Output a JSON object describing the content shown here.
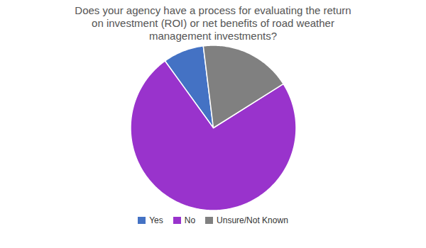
{
  "chart_data": {
    "type": "pie",
    "title": "Does your agency have a process for evaluating the return\non investment (ROI) or net benefits of road weather\nmanagement investments?",
    "categories": [
      "Yes",
      "No",
      "Unsure/Not Known"
    ],
    "values": [
      8,
      74,
      18
    ],
    "colors": [
      "#4472C4",
      "#9933CC",
      "#808080"
    ],
    "legend": "bottom"
  }
}
